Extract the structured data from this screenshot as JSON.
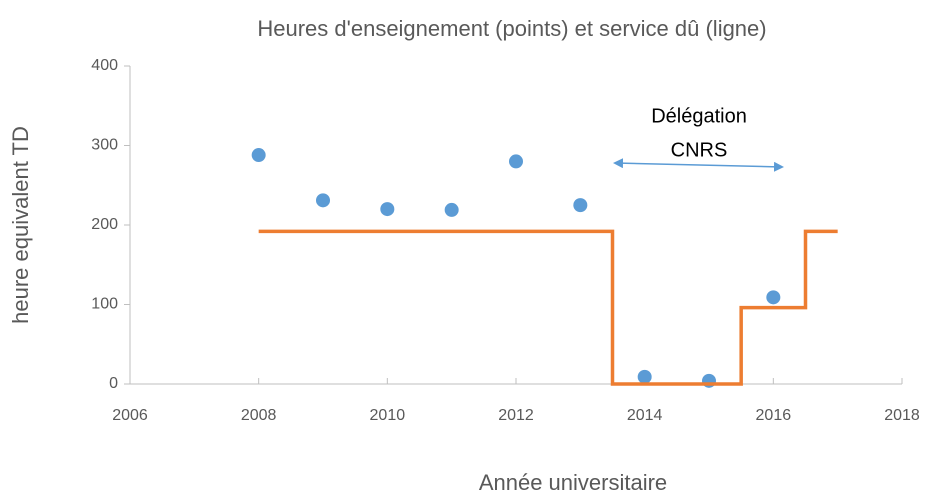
{
  "chart_data": {
    "type": "scatter",
    "title": "Heures d'enseignement (points) et service dû (ligne)",
    "xlabel": "Année universitaire",
    "ylabel": "heure equivalent TD",
    "annotations": [
      "Délégation",
      "CNRS"
    ],
    "xlim": [
      2006,
      2018
    ],
    "xticks": [
      2006,
      2008,
      2010,
      2012,
      2014,
      2016,
      2018
    ],
    "ylim": [
      0,
      400
    ],
    "yticks": [
      0,
      100,
      200,
      300,
      400
    ],
    "grid": false,
    "series": [
      {
        "type": "scatter",
        "color": "#5b9bd5",
        "x": [
          2008,
          2009,
          2010,
          2011,
          2012,
          2013,
          2014,
          2015,
          2016
        ],
        "values": [
          288,
          231,
          220,
          219,
          280,
          225,
          9,
          4,
          109
        ]
      },
      {
        "type": "line",
        "color": "#ed7d31",
        "x": [
          2008,
          2013.5,
          2013.5,
          2015.5,
          2015.5,
          2016.5,
          2016.5,
          2017
        ],
        "values": [
          192,
          192,
          0,
          0,
          96,
          96,
          192,
          192
        ]
      }
    ]
  }
}
